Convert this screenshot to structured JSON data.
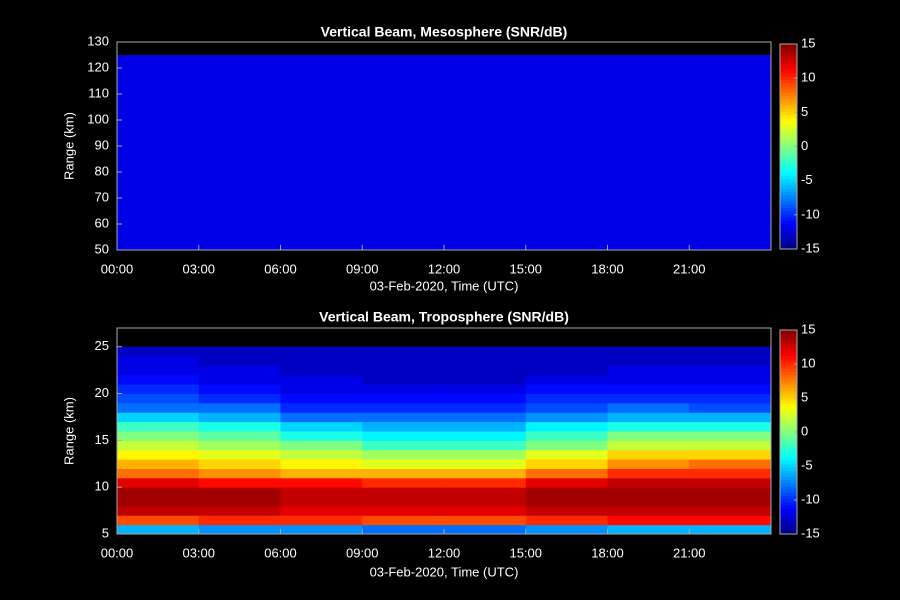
{
  "chart_data": [
    {
      "type": "heatmap",
      "title": "Vertical Beam, Mesosphere (SNR/dB)",
      "x_label": "03-Feb-2020, Time (UTC)",
      "y_label": "Range (km)",
      "colormap": "jet",
      "clim": [
        -15,
        15
      ],
      "cticks": [
        -15,
        -10,
        -5,
        0,
        5,
        10,
        15
      ],
      "xlim": [
        0,
        24
      ],
      "xticks": [
        {
          "value": 0,
          "label": "00:00"
        },
        {
          "value": 3,
          "label": "03:00"
        },
        {
          "value": 6,
          "label": "06:00"
        },
        {
          "value": 9,
          "label": "09:00"
        },
        {
          "value": 12,
          "label": "12:00"
        },
        {
          "value": 15,
          "label": "15:00"
        },
        {
          "value": 18,
          "label": "18:00"
        },
        {
          "value": 21,
          "label": "21:00"
        }
      ],
      "ylim": [
        50,
        130
      ],
      "yticks": [
        50,
        60,
        70,
        80,
        90,
        100,
        110,
        120,
        130
      ],
      "xbins": [
        0,
        3,
        6,
        9,
        12,
        15,
        18,
        21,
        24
      ],
      "ybins": [
        50,
        65,
        80,
        95,
        110,
        125
      ],
      "values": [
        [
          -12,
          -12,
          -12,
          -12,
          -12,
          -12,
          -12,
          -12
        ],
        [
          -12,
          -12,
          -12,
          -12,
          -12,
          -12,
          -12,
          -12
        ],
        [
          -12,
          -12,
          -12,
          -12,
          -12,
          -12,
          -12,
          -12
        ],
        [
          -12,
          -12,
          -12,
          -12,
          -12,
          -12,
          -12,
          -12
        ],
        [
          -12,
          -12,
          -12,
          -12,
          -12,
          -12,
          -12,
          -12
        ]
      ]
    },
    {
      "type": "heatmap",
      "title": "Vertical Beam, Troposphere (SNR/dB)",
      "x_label": "03-Feb-2020, Time (UTC)",
      "y_label": "Range (km)",
      "colormap": "jet",
      "clim": [
        -15,
        15
      ],
      "cticks": [
        -15,
        -10,
        -5,
        0,
        5,
        10,
        15
      ],
      "xlim": [
        0,
        24
      ],
      "xticks": [
        {
          "value": 0,
          "label": "00:00"
        },
        {
          "value": 3,
          "label": "03:00"
        },
        {
          "value": 6,
          "label": "06:00"
        },
        {
          "value": 9,
          "label": "09:00"
        },
        {
          "value": 12,
          "label": "12:00"
        },
        {
          "value": 15,
          "label": "15:00"
        },
        {
          "value": 18,
          "label": "18:00"
        },
        {
          "value": 21,
          "label": "21:00"
        }
      ],
      "ylim": [
        5,
        27
      ],
      "yticks": [
        5,
        10,
        15,
        20,
        25
      ],
      "xbins": [
        0,
        3,
        6,
        9,
        12,
        15,
        18,
        21,
        24
      ],
      "ybins": [
        5,
        6,
        7,
        8,
        9,
        10,
        11,
        12,
        13,
        14,
        15,
        16,
        17,
        18,
        19,
        20,
        21,
        22,
        23,
        24,
        25
      ],
      "values": [
        [
          -6,
          -7,
          -7,
          -8,
          -8,
          -7,
          -6,
          -6
        ],
        [
          9,
          10,
          10,
          9,
          9,
          10,
          11,
          11
        ],
        [
          13,
          13,
          12,
          12,
          12,
          13,
          13,
          13
        ],
        [
          14,
          14,
          13,
          13,
          13,
          14,
          14,
          14
        ],
        [
          14,
          14,
          13,
          13,
          13,
          14,
          14,
          14
        ],
        [
          12,
          11,
          11,
          10,
          10,
          12,
          13,
          13
        ],
        [
          8,
          7,
          6,
          6,
          6,
          8,
          10,
          10
        ],
        [
          6,
          5,
          4,
          3,
          3,
          5,
          7,
          8
        ],
        [
          4,
          3,
          2,
          1,
          1,
          3,
          5,
          5
        ],
        [
          2,
          1,
          0,
          -2,
          -2,
          0,
          2,
          2
        ],
        [
          0,
          -1,
          -3,
          -4,
          -4,
          -2,
          0,
          0
        ],
        [
          -2,
          -3,
          -5,
          -6,
          -6,
          -4,
          -3,
          -3
        ],
        [
          -5,
          -6,
          -8,
          -8,
          -8,
          -7,
          -6,
          -6
        ],
        [
          -8,
          -8,
          -10,
          -10,
          -10,
          -9,
          -8,
          -9
        ],
        [
          -9,
          -10,
          -11,
          -11,
          -11,
          -10,
          -10,
          -10
        ],
        [
          -10,
          -11,
          -12,
          -12,
          -12,
          -11,
          -11,
          -11
        ],
        [
          -11,
          -12,
          -12,
          -13,
          -13,
          -12,
          -12,
          -12
        ],
        [
          -12,
          -12,
          -13,
          -13,
          -13,
          -13,
          -12,
          -12
        ],
        [
          -12,
          -13,
          -13,
          -13,
          -13,
          -13,
          -13,
          -13
        ],
        [
          -13,
          -13,
          -13,
          -13,
          -13,
          -13,
          -13,
          -13
        ]
      ]
    }
  ]
}
